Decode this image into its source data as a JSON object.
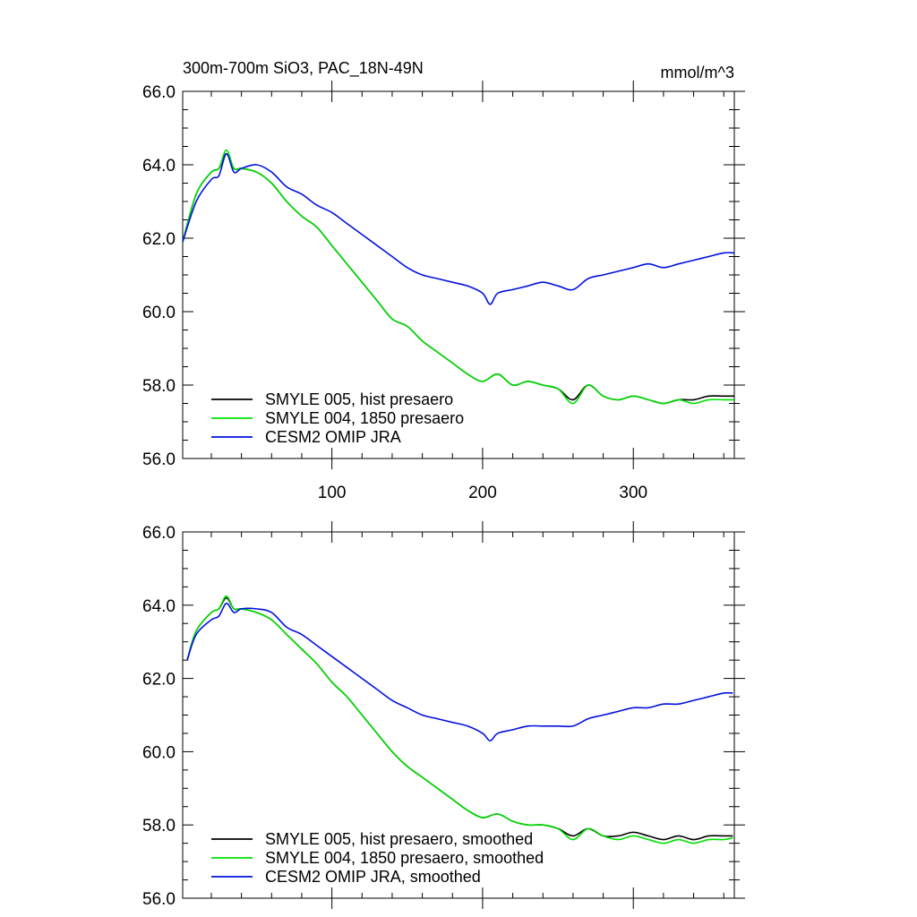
{
  "figure": {
    "title_left": "300m-700m SiO3, PAC_18N-49N",
    "title_right": "mmol/m^3"
  },
  "colors": {
    "black": "#000000",
    "green": "#00e000",
    "blue": "#0010e0"
  },
  "chart_data": [
    {
      "type": "line",
      "panel": "top",
      "title": "300m-700m SiO3, PAC_18N-49N",
      "units": "mmol/m^3",
      "xlim": [
        1,
        367
      ],
      "ylim": [
        56,
        66
      ],
      "yticks": [
        "56.0",
        "58.0",
        "60.0",
        "62.0",
        "64.0",
        "66.0"
      ],
      "xticks": [
        "100",
        "200",
        "300"
      ],
      "legend_position": "bottom-left",
      "series": [
        {
          "name": "SMYLE 005, hist presaero",
          "color": "#000000",
          "x": [
            1,
            10,
            20,
            25,
            30,
            35,
            40,
            50,
            60,
            70,
            80,
            90,
            100,
            110,
            120,
            130,
            140,
            150,
            160,
            170,
            180,
            190,
            200,
            210,
            220,
            230,
            240,
            250,
            260,
            270,
            280,
            290,
            300,
            310,
            320,
            330,
            340,
            350,
            360,
            367
          ],
          "y": [
            61.9,
            63.2,
            63.8,
            63.9,
            64.3,
            63.9,
            63.9,
            63.8,
            63.5,
            63.0,
            62.6,
            62.3,
            61.8,
            61.3,
            60.8,
            60.3,
            59.8,
            59.6,
            59.2,
            58.9,
            58.6,
            58.3,
            58.1,
            58.3,
            58.0,
            58.1,
            58.0,
            57.9,
            57.6,
            58.0,
            57.7,
            57.6,
            57.7,
            57.6,
            57.5,
            57.6,
            57.6,
            57.7,
            57.7,
            57.7
          ]
        },
        {
          "name": "SMYLE 004, 1850 presaero",
          "color": "#00e000",
          "x": [
            1,
            10,
            20,
            25,
            30,
            35,
            40,
            50,
            60,
            70,
            80,
            90,
            100,
            110,
            120,
            130,
            140,
            150,
            160,
            170,
            180,
            190,
            200,
            210,
            220,
            230,
            240,
            250,
            260,
            270,
            280,
            290,
            300,
            310,
            320,
            330,
            340,
            350,
            360,
            367
          ],
          "y": [
            61.9,
            63.2,
            63.8,
            63.9,
            64.4,
            63.9,
            63.9,
            63.8,
            63.5,
            63.0,
            62.6,
            62.3,
            61.8,
            61.3,
            60.8,
            60.3,
            59.8,
            59.6,
            59.2,
            58.9,
            58.6,
            58.3,
            58.1,
            58.3,
            58.0,
            58.1,
            58.0,
            57.9,
            57.5,
            58.0,
            57.7,
            57.6,
            57.7,
            57.6,
            57.5,
            57.6,
            57.5,
            57.6,
            57.6,
            57.6
          ]
        },
        {
          "name": "CESM2 OMIP JRA",
          "color": "#0010e0",
          "x": [
            1,
            10,
            20,
            25,
            30,
            35,
            40,
            50,
            60,
            70,
            80,
            90,
            100,
            110,
            120,
            130,
            140,
            150,
            160,
            170,
            180,
            190,
            200,
            205,
            210,
            220,
            230,
            240,
            250,
            260,
            270,
            280,
            290,
            300,
            310,
            320,
            330,
            340,
            350,
            360,
            367
          ],
          "y": [
            61.9,
            63.0,
            63.6,
            63.7,
            64.3,
            63.8,
            63.9,
            64.0,
            63.8,
            63.4,
            63.2,
            62.9,
            62.7,
            62.4,
            62.1,
            61.8,
            61.5,
            61.2,
            61.0,
            60.9,
            60.8,
            60.7,
            60.5,
            60.2,
            60.5,
            60.6,
            60.7,
            60.8,
            60.7,
            60.6,
            60.9,
            61.0,
            61.1,
            61.2,
            61.3,
            61.2,
            61.3,
            61.4,
            61.5,
            61.6,
            61.6
          ]
        }
      ]
    },
    {
      "type": "line",
      "panel": "bottom",
      "xlim": [
        1,
        367
      ],
      "ylim": [
        56,
        66
      ],
      "yticks": [
        "56.0",
        "58.0",
        "60.0",
        "62.0",
        "64.0",
        "66.0"
      ],
      "legend_position": "bottom-left",
      "series": [
        {
          "name": "SMYLE 005, hist presaero, smoothed",
          "color": "#000000",
          "x": [
            4,
            10,
            20,
            25,
            30,
            35,
            40,
            50,
            60,
            70,
            80,
            90,
            100,
            110,
            120,
            130,
            140,
            150,
            160,
            170,
            180,
            190,
            200,
            210,
            220,
            230,
            240,
            250,
            260,
            270,
            280,
            290,
            300,
            310,
            320,
            330,
            340,
            350,
            360,
            366
          ],
          "y": [
            62.5,
            63.3,
            63.8,
            63.9,
            64.2,
            63.9,
            63.9,
            63.8,
            63.6,
            63.2,
            62.8,
            62.4,
            61.9,
            61.5,
            61.0,
            60.5,
            60.0,
            59.6,
            59.3,
            59.0,
            58.7,
            58.4,
            58.2,
            58.3,
            58.1,
            58.0,
            58.0,
            57.9,
            57.7,
            57.9,
            57.7,
            57.7,
            57.8,
            57.7,
            57.6,
            57.7,
            57.6,
            57.7,
            57.7,
            57.7
          ]
        },
        {
          "name": "SMYLE 004, 1850 presaero, smoothed",
          "color": "#00e000",
          "x": [
            4,
            10,
            20,
            25,
            30,
            35,
            40,
            50,
            60,
            70,
            80,
            90,
            100,
            110,
            120,
            130,
            140,
            150,
            160,
            170,
            180,
            190,
            200,
            210,
            220,
            230,
            240,
            250,
            260,
            270,
            280,
            290,
            300,
            310,
            320,
            330,
            340,
            350,
            360,
            366
          ],
          "y": [
            62.5,
            63.3,
            63.8,
            63.9,
            64.25,
            63.9,
            63.9,
            63.8,
            63.6,
            63.2,
            62.8,
            62.4,
            61.9,
            61.5,
            61.0,
            60.5,
            60.0,
            59.6,
            59.3,
            59.0,
            58.7,
            58.4,
            58.2,
            58.3,
            58.1,
            58.0,
            58.0,
            57.9,
            57.6,
            57.9,
            57.7,
            57.6,
            57.7,
            57.6,
            57.5,
            57.6,
            57.5,
            57.6,
            57.6,
            57.65
          ]
        },
        {
          "name": "CESM2 OMIP JRA, smoothed",
          "color": "#0010e0",
          "x": [
            4,
            10,
            20,
            25,
            30,
            35,
            40,
            50,
            60,
            70,
            80,
            90,
            100,
            110,
            120,
            130,
            140,
            150,
            160,
            170,
            180,
            190,
            200,
            205,
            210,
            220,
            230,
            240,
            250,
            260,
            270,
            280,
            290,
            300,
            310,
            320,
            330,
            340,
            350,
            360,
            366
          ],
          "y": [
            62.5,
            63.2,
            63.6,
            63.7,
            64.05,
            63.8,
            63.9,
            63.9,
            63.8,
            63.4,
            63.2,
            62.9,
            62.6,
            62.3,
            62.0,
            61.7,
            61.4,
            61.2,
            61.0,
            60.9,
            60.8,
            60.7,
            60.5,
            60.3,
            60.5,
            60.6,
            60.7,
            60.7,
            60.7,
            60.7,
            60.9,
            61.0,
            61.1,
            61.2,
            61.2,
            61.3,
            61.3,
            61.4,
            61.5,
            61.6,
            61.6
          ]
        }
      ]
    }
  ]
}
